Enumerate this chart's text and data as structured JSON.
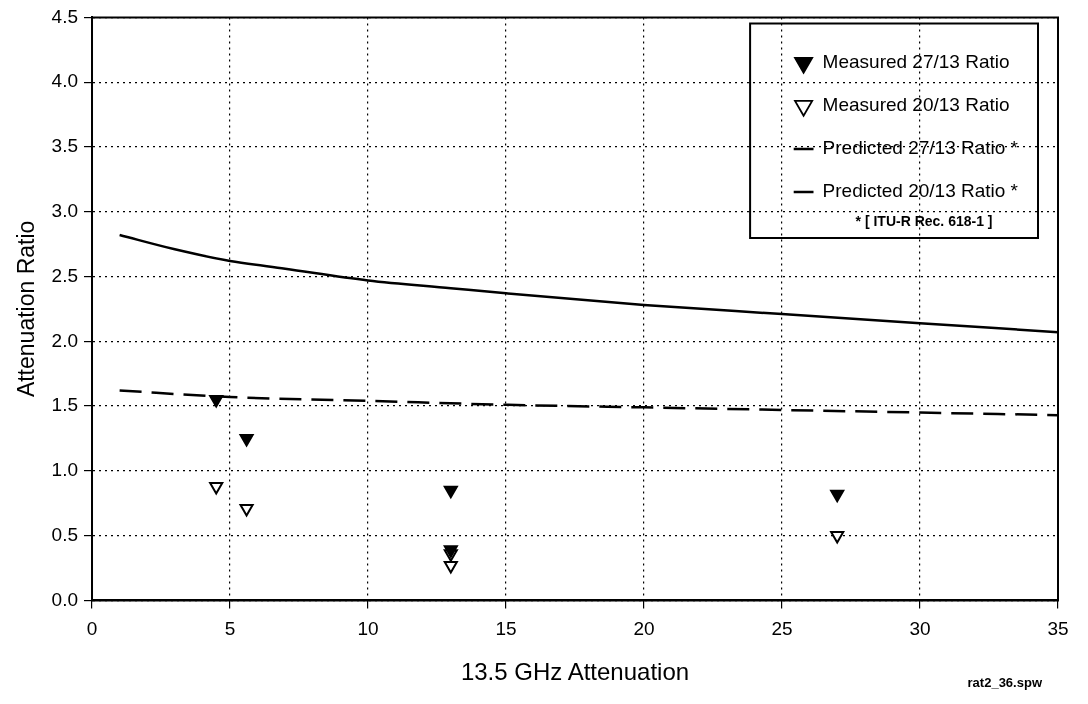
{
  "chart_data": {
    "type": "scatter",
    "xlabel": "13.5 GHz Attenuation",
    "ylabel": "Attenuation Ratio",
    "xlim": [
      0,
      35
    ],
    "xticks": [
      0,
      5,
      10,
      15,
      20,
      25,
      30,
      35
    ],
    "ylim": [
      0,
      4.5
    ],
    "yticks": [
      {
        "value": 0,
        "label": "0.0"
      },
      {
        "value": 0.5,
        "label": "0.5"
      },
      {
        "value": 1,
        "label": "1.0"
      },
      {
        "value": 1.5,
        "label": "1.5"
      },
      {
        "value": 2,
        "label": "2.0"
      },
      {
        "value": 2.5,
        "label": "2.5"
      },
      {
        "value": 3,
        "label": "3.0"
      },
      {
        "value": 3.5,
        "label": "3.5"
      },
      {
        "value": 4,
        "label": "4.0"
      },
      {
        "value": 4.5,
        "label": "4.5"
      }
    ],
    "grid": true,
    "legend": "top right",
    "series": [
      {
        "name": "Measured 27/13 Ratio",
        "marker": "triangle",
        "color": "#000000",
        "x": [
          4.5,
          5.6,
          13,
          13,
          27
        ],
        "values": [
          1.55,
          1.25,
          0.85,
          0.39,
          0.82
        ]
      },
      {
        "name": "Measured 20/13 Ratio",
        "marker": "triangle",
        "color": "#000000",
        "x": [
          4.5,
          5.6,
          13,
          13,
          27
        ],
        "values": [
          0.88,
          0.71,
          0.36,
          0.27,
          0.5
        ]
      },
      {
        "name": "Predicted 27/13 Ratio *",
        "type": "line",
        "line_style": "solid",
        "color": "#000000",
        "x": [
          1,
          3,
          5,
          7,
          10,
          13,
          15,
          20,
          25,
          30,
          35
        ],
        "values": [
          2.82,
          2.71,
          2.62,
          2.56,
          2.47,
          2.41,
          2.37,
          2.28,
          2.21,
          2.14,
          2.07
        ]
      },
      {
        "name": "Predicted 20/13 Ratio *",
        "type": "line",
        "line_style": "dashed",
        "color": "#000000",
        "x": [
          1,
          5,
          10,
          15,
          20,
          25,
          30,
          35
        ],
        "values": [
          1.62,
          1.57,
          1.54,
          1.51,
          1.49,
          1.47,
          1.45,
          1.43
        ]
      }
    ],
    "annotations": [
      "* [ ITU-R Rec. 618-1 ]",
      "rat2_36.spw"
    ]
  }
}
